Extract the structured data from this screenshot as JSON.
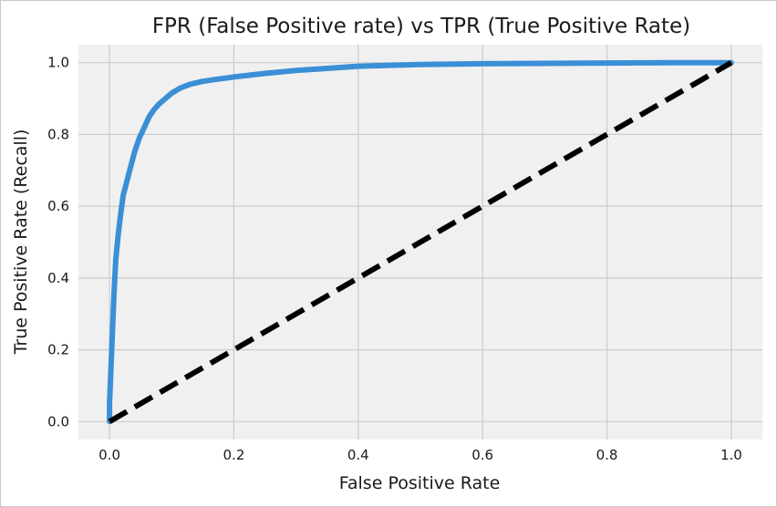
{
  "chart_data": {
    "type": "line",
    "title": "FPR (False Positive rate) vs TPR (True Positive Rate)",
    "xlabel": "False Positive Rate",
    "ylabel": "True Positive Rate (Recall)",
    "xlim": [
      -0.05,
      1.05
    ],
    "ylim": [
      -0.05,
      1.05
    ],
    "xticks": [
      "0.0",
      "0.2",
      "0.4",
      "0.6",
      "0.8",
      "1.0"
    ],
    "yticks": [
      "0.0",
      "0.2",
      "0.4",
      "0.6",
      "0.8",
      "1.0"
    ],
    "grid": true,
    "background": "#f0f0f0",
    "series": [
      {
        "style": "solid",
        "color": "#3a8fd6",
        "x": [
          0.0,
          0.0,
          0.004,
          0.007,
          0.01,
          0.014,
          0.018,
          0.022,
          0.028,
          0.034,
          0.04,
          0.048,
          0.056,
          0.064,
          0.072,
          0.08,
          0.09,
          0.1,
          0.115,
          0.13,
          0.15,
          0.17,
          0.2,
          0.25,
          0.3,
          0.35,
          0.4,
          0.5,
          0.6,
          0.7,
          0.8,
          0.9,
          1.0
        ],
        "y": [
          0.0,
          0.05,
          0.22,
          0.35,
          0.45,
          0.52,
          0.58,
          0.63,
          0.67,
          0.71,
          0.75,
          0.79,
          0.82,
          0.85,
          0.87,
          0.885,
          0.9,
          0.915,
          0.93,
          0.94,
          0.948,
          0.953,
          0.96,
          0.97,
          0.978,
          0.984,
          0.99,
          0.995,
          0.997,
          0.998,
          0.999,
          1.0,
          1.0
        ]
      },
      {
        "style": "dashed",
        "color": "#000000",
        "x": [
          0.0,
          1.0
        ],
        "y": [
          0.0,
          1.0
        ]
      }
    ]
  }
}
